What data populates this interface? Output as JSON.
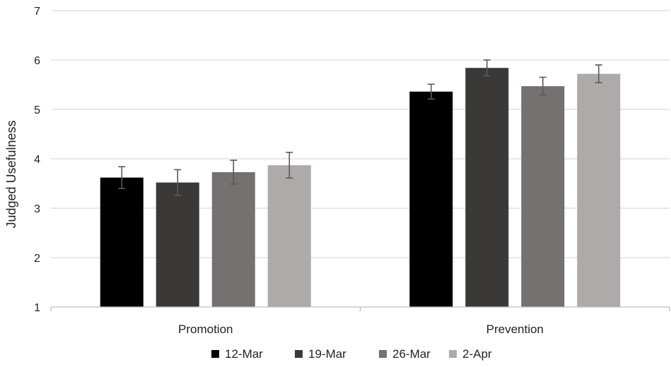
{
  "chart_data": {
    "type": "bar",
    "title": "",
    "ylabel": "Judged Usefulness",
    "xlabel": "",
    "categories": [
      "Promotion",
      "Prevention"
    ],
    "ylim": [
      1,
      7
    ],
    "yticks": [
      "1",
      "2",
      "3",
      "4",
      "5",
      "6",
      "7"
    ],
    "grid": true,
    "legend_position": "bottom",
    "series": [
      {
        "name": "12-Mar",
        "color": "#000000",
        "values": [
          3.62,
          5.36
        ],
        "errors": [
          0.22,
          0.15
        ]
      },
      {
        "name": "19-Mar",
        "color": "#3b3838",
        "values": [
          3.52,
          5.84
        ],
        "errors": [
          0.26,
          0.16
        ]
      },
      {
        "name": "26-Mar",
        "color": "#767171",
        "values": [
          3.73,
          5.47
        ],
        "errors": [
          0.24,
          0.18
        ]
      },
      {
        "name": "2-Apr",
        "color": "#aeaaaa",
        "values": [
          3.87,
          5.72
        ],
        "errors": [
          0.26,
          0.18
        ]
      }
    ]
  }
}
